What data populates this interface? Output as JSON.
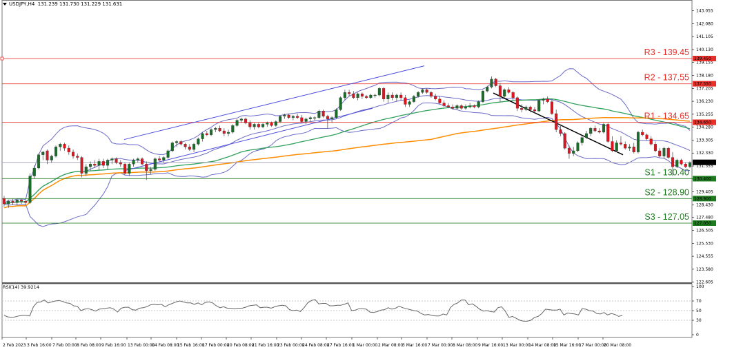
{
  "header": {
    "symbol": "USDJPY,H4",
    "ohlc": "131.239 131.730 131.229 131.631"
  },
  "rsi_panel": {
    "label": "RSI(14) 39.9214"
  },
  "chart_data": [
    {
      "type": "candlestick",
      "title": "USDJPY,H4",
      "subtitle": "131.239 131.730 131.229 131.631",
      "ylim": [
        122.605,
        143.055
      ],
      "y_ticks": [
        143.055,
        142.08,
        141.105,
        140.13,
        139.155,
        138.18,
        137.205,
        136.23,
        135.255,
        134.28,
        133.305,
        132.33,
        131.355,
        130.38,
        129.405,
        128.43,
        127.48,
        126.505,
        125.53,
        124.555,
        123.58,
        122.605
      ],
      "x_ticks": [
        "2 Feb 2023",
        "3 Feb 16:00",
        "7 Feb 00:00",
        "8 Feb 08:00",
        "9 Feb 16:00",
        "13 Feb 00:00",
        "14 Feb 08:00",
        "15 Feb 16:00",
        "17 Feb 00:00",
        "20 Feb 08:00",
        "21 Feb 16:00",
        "23 Feb 00:00",
        "24 Feb 08:00",
        "27 Feb 16:00",
        "1 Mar 00:00",
        "2 Mar 08:00",
        "3 Mar 16:00",
        "7 Mar 00:00",
        "8 Mar 08:00",
        "9 Mar 16:00",
        "13 Mar 00:00",
        "14 Mar 08:00",
        "15 Mar 16:00",
        "17 Mar 00:00",
        "20 Mar 08:00"
      ],
      "current_price": 131.631,
      "levels": [
        {
          "name": "R3",
          "label": "R3 - 139.45",
          "value": 139.45,
          "axis_tag": "139.450",
          "color": "#e8302a"
        },
        {
          "name": "R2",
          "label": "R2 - 137.55",
          "value": 137.55,
          "axis_tag": "137.550",
          "color": "#e8302a"
        },
        {
          "name": "R1",
          "label": "R1 - 134.65",
          "value": 134.65,
          "axis_tag": "134.650",
          "color": "#e8302a"
        },
        {
          "name": "S1",
          "label": "S1 - 130.40",
          "value": 130.4,
          "axis_tag": "130.400",
          "color": "#1e7a1e"
        },
        {
          "name": "S2",
          "label": "S2 - 128.90",
          "value": 128.9,
          "axis_tag": "128.900",
          "color": "#1e7a1e"
        },
        {
          "name": "S3",
          "label": "S3 - 127.05",
          "value": 127.05,
          "axis_tag": "127.050",
          "color": "#1e7a1e"
        }
      ],
      "candles_ohlc": [
        [
          128.9,
          129.1,
          128.3,
          128.5
        ],
        [
          128.5,
          128.8,
          128.2,
          128.7
        ],
        [
          128.7,
          128.9,
          128.4,
          128.6
        ],
        [
          128.6,
          128.9,
          128.4,
          128.8
        ],
        [
          128.8,
          128.9,
          128.5,
          128.7
        ],
        [
          128.7,
          128.8,
          128.4,
          128.6
        ],
        [
          128.6,
          130.8,
          128.5,
          130.6
        ],
        [
          130.6,
          131.4,
          130.4,
          131.2
        ],
        [
          131.2,
          132.3,
          131.1,
          132.2
        ],
        [
          132.2,
          132.5,
          131.8,
          132.4
        ],
        [
          132.5,
          132.6,
          131.5,
          131.8
        ],
        [
          131.8,
          132.2,
          131.6,
          132.1
        ],
        [
          132.1,
          132.9,
          132.0,
          132.8
        ],
        [
          132.8,
          133.1,
          132.5,
          133.0
        ],
        [
          133.0,
          133.1,
          132.5,
          132.7
        ],
        [
          132.7,
          132.9,
          132.2,
          132.4
        ],
        [
          132.4,
          132.6,
          131.9,
          132.1
        ],
        [
          132.1,
          132.3,
          131.8,
          132.0
        ],
        [
          132.0,
          132.1,
          130.5,
          130.8
        ],
        [
          130.8,
          131.5,
          130.6,
          131.3
        ],
        [
          131.3,
          131.7,
          131.0,
          131.5
        ],
        [
          131.5,
          131.8,
          131.2,
          131.4
        ],
        [
          131.4,
          131.9,
          131.0,
          131.7
        ],
        [
          131.7,
          131.9,
          131.2,
          131.4
        ],
        [
          131.4,
          131.9,
          131.1,
          131.8
        ],
        [
          131.8,
          132.0,
          131.5,
          131.9
        ],
        [
          131.9,
          132.0,
          131.5,
          131.6
        ],
        [
          131.6,
          131.8,
          131.3,
          131.5
        ],
        [
          131.5,
          131.6,
          130.7,
          130.8
        ],
        [
          130.8,
          131.6,
          130.6,
          131.5
        ],
        [
          131.5,
          131.9,
          131.3,
          131.8
        ],
        [
          131.8,
          132.0,
          131.6,
          131.9
        ],
        [
          131.9,
          132.0,
          131.4,
          131.5
        ],
        [
          131.5,
          131.7,
          130.3,
          131.0
        ],
        [
          131.0,
          131.3,
          130.7,
          131.1
        ],
        [
          131.1,
          132.0,
          131.0,
          131.9
        ],
        [
          131.9,
          132.1,
          131.7,
          131.8
        ],
        [
          131.8,
          132.1,
          131.6,
          132.0
        ],
        [
          132.0,
          132.6,
          131.9,
          132.5
        ],
        [
          132.5,
          133.2,
          132.4,
          133.1
        ],
        [
          133.1,
          133.3,
          132.8,
          133.2
        ],
        [
          133.2,
          133.3,
          132.9,
          133.0
        ],
        [
          133.0,
          133.1,
          132.6,
          132.8
        ],
        [
          132.8,
          133.0,
          132.5,
          132.6
        ],
        [
          132.6,
          133.1,
          132.4,
          133.0
        ],
        [
          133.0,
          133.5,
          132.9,
          133.4
        ],
        [
          133.4,
          133.9,
          133.2,
          133.8
        ],
        [
          133.8,
          134.0,
          133.6,
          133.7
        ],
        [
          133.7,
          134.2,
          133.6,
          134.1
        ],
        [
          134.1,
          134.3,
          133.9,
          134.2
        ],
        [
          134.2,
          134.4,
          133.9,
          134.0
        ],
        [
          134.0,
          134.2,
          133.6,
          133.8
        ],
        [
          133.8,
          134.1,
          133.6,
          133.9
        ],
        [
          133.9,
          134.5,
          133.8,
          134.4
        ],
        [
          134.4,
          134.9,
          134.3,
          134.8
        ],
        [
          134.8,
          135.0,
          134.6,
          134.9
        ],
        [
          134.9,
          135.0,
          134.5,
          134.6
        ],
        [
          134.6,
          134.8,
          134.1,
          134.3
        ],
        [
          134.3,
          134.6,
          134.1,
          134.5
        ],
        [
          134.5,
          134.6,
          134.2,
          134.3
        ],
        [
          134.3,
          134.6,
          134.2,
          134.5
        ],
        [
          134.5,
          134.7,
          134.3,
          134.6
        ],
        [
          134.6,
          134.7,
          134.3,
          134.4
        ],
        [
          134.4,
          134.8,
          134.3,
          134.7
        ],
        [
          134.7,
          135.2,
          134.6,
          135.1
        ],
        [
          135.1,
          135.3,
          134.9,
          135.2
        ],
        [
          135.2,
          135.3,
          134.9,
          135.0
        ],
        [
          135.0,
          135.2,
          134.8,
          135.1
        ],
        [
          135.1,
          135.3,
          134.9,
          135.0
        ],
        [
          135.0,
          135.2,
          134.6,
          134.7
        ],
        [
          134.7,
          135.0,
          134.5,
          134.9
        ],
        [
          134.9,
          135.1,
          134.7,
          135.0
        ],
        [
          135.0,
          135.1,
          134.8,
          135.0
        ],
        [
          135.0,
          135.6,
          134.9,
          135.5
        ],
        [
          135.5,
          135.6,
          135.0,
          135.1
        ],
        [
          135.1,
          135.2,
          134.2,
          134.9
        ],
        [
          134.9,
          135.1,
          134.6,
          135.0
        ],
        [
          135.0,
          135.7,
          134.9,
          135.6
        ],
        [
          135.6,
          136.6,
          135.5,
          136.5
        ],
        [
          136.5,
          137.1,
          136.3,
          136.9
        ],
        [
          136.9,
          137.1,
          136.6,
          136.8
        ],
        [
          136.8,
          137.0,
          136.4,
          136.5
        ],
        [
          136.5,
          136.9,
          136.3,
          136.8
        ],
        [
          136.8,
          136.9,
          136.4,
          136.6
        ],
        [
          136.6,
          136.7,
          136.4,
          136.5
        ],
        [
          136.5,
          136.8,
          136.4,
          136.7
        ],
        [
          136.7,
          136.8,
          136.5,
          136.7
        ],
        [
          136.7,
          137.3,
          136.6,
          137.2
        ],
        [
          137.2,
          137.3,
          136.2,
          136.4
        ],
        [
          136.4,
          136.9,
          136.1,
          136.7
        ],
        [
          136.7,
          136.9,
          136.3,
          136.5
        ],
        [
          136.5,
          136.8,
          136.2,
          136.7
        ],
        [
          136.7,
          136.9,
          136.3,
          136.5
        ],
        [
          136.5,
          136.7,
          135.8,
          136.0
        ],
        [
          136.0,
          136.3,
          135.8,
          136.2
        ],
        [
          136.2,
          136.7,
          136.1,
          136.6
        ],
        [
          136.6,
          137.0,
          136.5,
          136.9
        ],
        [
          136.9,
          137.2,
          136.8,
          137.1
        ],
        [
          137.1,
          137.2,
          136.8,
          136.9
        ],
        [
          136.9,
          137.0,
          136.5,
          136.6
        ],
        [
          136.6,
          136.8,
          136.3,
          136.4
        ],
        [
          136.4,
          136.6,
          136.0,
          136.1
        ],
        [
          136.1,
          136.3,
          135.8,
          135.9
        ],
        [
          135.9,
          136.1,
          135.7,
          135.8
        ],
        [
          135.8,
          136.0,
          135.6,
          135.7
        ],
        [
          135.7,
          136.0,
          135.6,
          135.9
        ],
        [
          135.9,
          136.0,
          135.6,
          135.7
        ],
        [
          135.7,
          136.0,
          135.6,
          135.8
        ],
        [
          135.8,
          136.1,
          135.7,
          135.9
        ],
        [
          135.9,
          136.0,
          135.7,
          135.8
        ],
        [
          135.8,
          136.3,
          135.7,
          136.2
        ],
        [
          136.2,
          137.1,
          136.1,
          137.0
        ],
        [
          137.0,
          137.4,
          136.9,
          137.3
        ],
        [
          137.3,
          138.1,
          137.2,
          137.9
        ],
        [
          137.9,
          138.0,
          137.3,
          137.4
        ],
        [
          137.4,
          137.6,
          136.2,
          136.6
        ],
        [
          136.6,
          137.2,
          136.5,
          137.1
        ],
        [
          137.1,
          137.3,
          136.8,
          136.9
        ],
        [
          136.9,
          137.0,
          136.3,
          136.5
        ],
        [
          136.5,
          136.6,
          135.5,
          135.7
        ],
        [
          135.7,
          136.0,
          135.4,
          135.6
        ],
        [
          135.6,
          135.9,
          135.5,
          135.8
        ],
        [
          135.8,
          135.9,
          135.4,
          135.6
        ],
        [
          135.6,
          135.8,
          135.3,
          135.5
        ],
        [
          135.5,
          136.4,
          135.4,
          136.3
        ],
        [
          136.3,
          136.5,
          136.0,
          136.4
        ],
        [
          136.4,
          136.6,
          136.1,
          136.2
        ],
        [
          136.2,
          136.4,
          135.2,
          135.3
        ],
        [
          135.3,
          135.6,
          133.9,
          134.1
        ],
        [
          134.1,
          134.5,
          133.6,
          133.8
        ],
        [
          133.8,
          133.9,
          132.6,
          132.7
        ],
        [
          132.7,
          132.9,
          131.9,
          132.3
        ],
        [
          132.3,
          132.8,
          132.1,
          132.5
        ],
        [
          132.5,
          133.2,
          132.4,
          133.1
        ],
        [
          133.1,
          133.6,
          132.9,
          133.5
        ],
        [
          133.5,
          134.0,
          133.4,
          133.8
        ],
        [
          133.8,
          134.3,
          133.6,
          134.2
        ],
        [
          134.2,
          134.4,
          133.9,
          134.0
        ],
        [
          134.0,
          134.2,
          133.8,
          133.9
        ],
        [
          133.9,
          134.6,
          133.8,
          134.5
        ],
        [
          134.5,
          134.6,
          133.1,
          133.2
        ],
        [
          133.2,
          133.6,
          132.4,
          132.5
        ],
        [
          132.5,
          133.3,
          132.4,
          133.1
        ],
        [
          133.1,
          133.6,
          132.9,
          133.0
        ],
        [
          133.0,
          133.2,
          132.6,
          132.7
        ],
        [
          132.7,
          133.0,
          132.5,
          132.8
        ],
        [
          132.8,
          133.1,
          132.3,
          132.4
        ],
        [
          132.4,
          134.0,
          132.3,
          133.9
        ],
        [
          133.9,
          134.1,
          133.6,
          133.7
        ],
        [
          133.7,
          133.8,
          133.3,
          133.4
        ],
        [
          133.4,
          133.6,
          132.9,
          133.0
        ],
        [
          133.0,
          133.2,
          132.4,
          132.5
        ],
        [
          132.5,
          132.7,
          132.0,
          132.1
        ],
        [
          132.1,
          132.8,
          131.9,
          132.7
        ],
        [
          132.7,
          132.8,
          131.9,
          132.0
        ],
        [
          132.0,
          132.4,
          130.6,
          131.3
        ],
        [
          131.3,
          131.9,
          131.2,
          131.8
        ],
        [
          131.8,
          131.9,
          131.4,
          131.5
        ],
        [
          131.5,
          131.6,
          131.2,
          131.3
        ],
        [
          131.3,
          131.7,
          131.2,
          131.6
        ]
      ],
      "overlays": [
        {
          "name": "Bollinger Bands (upper/middle/lower)",
          "color": "#6a6ac8"
        },
        {
          "name": "MA fast",
          "color": "#2fa05a"
        },
        {
          "name": "MA slow",
          "color": "#ff8c00"
        },
        {
          "name": "Ascending channel line",
          "color": "#4a4ae0"
        },
        {
          "name": "Descending trendline",
          "color": "#000000"
        }
      ]
    },
    {
      "type": "line",
      "title": "RSI(14) 39.9214",
      "ylim": [
        0,
        100
      ],
      "y_ticks": [
        100,
        70,
        50,
        30,
        0
      ],
      "grid_levels": [
        70,
        50,
        30
      ],
      "values": [
        40,
        37,
        36,
        37,
        39,
        40,
        40,
        39,
        58,
        67,
        68,
        72,
        66,
        68,
        70,
        71,
        69,
        66,
        65,
        60,
        59,
        50,
        53,
        54,
        52,
        49,
        53,
        54,
        55,
        56,
        53,
        47,
        55,
        57,
        57,
        52,
        51,
        55,
        56,
        58,
        62,
        63,
        62,
        63,
        58,
        62,
        65,
        68,
        70,
        68,
        66,
        66,
        63,
        66,
        62,
        67,
        68,
        66,
        60,
        56,
        58,
        55,
        55,
        54,
        55,
        55,
        57,
        60,
        61,
        62,
        56,
        57,
        57,
        55,
        58,
        60,
        61,
        60,
        52,
        50,
        51,
        48,
        56,
        66,
        71,
        73,
        64,
        65,
        65,
        60,
        60,
        61,
        61,
        63,
        66,
        50,
        51,
        54,
        54,
        53,
        47,
        46,
        48,
        51,
        52,
        56,
        53,
        55,
        59,
        56,
        54,
        52,
        50,
        49,
        44,
        41,
        42,
        40,
        39,
        39,
        43,
        41,
        56,
        63,
        66,
        72,
        72,
        62,
        64,
        59,
        53,
        49,
        50,
        48,
        47,
        56,
        58,
        49,
        36,
        38,
        34,
        30,
        28,
        28,
        30,
        36,
        38,
        44,
        53,
        52,
        51,
        51,
        53,
        41,
        45,
        44,
        43,
        41,
        54,
        53,
        50,
        49,
        44,
        43,
        46,
        41,
        44,
        42,
        38,
        40
      ]
    }
  ]
}
